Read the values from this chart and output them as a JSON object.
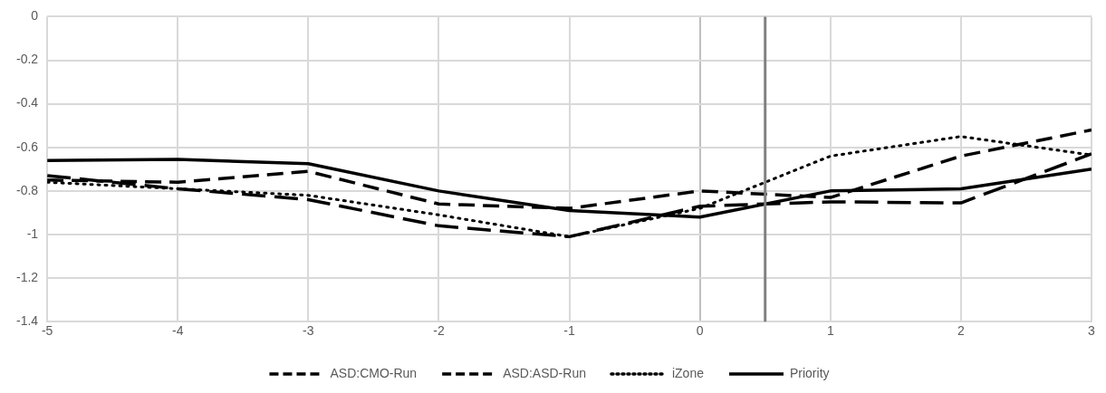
{
  "chart_data": {
    "type": "line",
    "x": [
      -5,
      -4,
      -3,
      -2,
      -1,
      0,
      1,
      2,
      3
    ],
    "series": [
      {
        "name": "ASD:CMO-Run",
        "color": "#000000",
        "line_style": "dashed",
        "values": [
          -0.73,
          -0.79,
          -0.84,
          -0.96,
          -1.01,
          -0.87,
          -0.85,
          -0.855,
          -0.63
        ]
      },
      {
        "name": "ASD:ASD-Run",
        "color": "#000000",
        "line_style": "dashed",
        "values": [
          -0.75,
          -0.76,
          -0.71,
          -0.86,
          -0.88,
          -0.8,
          -0.83,
          -0.64,
          -0.52
        ]
      },
      {
        "name": "iZone",
        "color": "#000000",
        "line_style": "dotted",
        "values": [
          -0.76,
          -0.79,
          -0.82,
          -0.91,
          -1.01,
          -0.88,
          -0.64,
          -0.55,
          -0.635
        ]
      },
      {
        "name": "Priority",
        "color": "#000000",
        "line_style": "solid",
        "values": [
          -0.66,
          -0.655,
          -0.675,
          -0.8,
          -0.89,
          -0.92,
          -0.8,
          -0.79,
          -0.7
        ]
      }
    ],
    "xlim": [
      -5,
      3
    ],
    "xticks": [
      -5,
      -4,
      -3,
      -2,
      -1,
      0,
      1,
      2,
      3
    ],
    "ylim": [
      -1.4,
      0
    ],
    "yticks": [
      -1.4,
      -1.2,
      -1,
      -0.8,
      -0.6,
      -0.4,
      -0.2,
      0
    ],
    "ref_lines": [
      {
        "axis": "x",
        "value": 0.5,
        "color": "#808080"
      }
    ],
    "grid": true,
    "legend": "bottom",
    "marker": "none"
  }
}
